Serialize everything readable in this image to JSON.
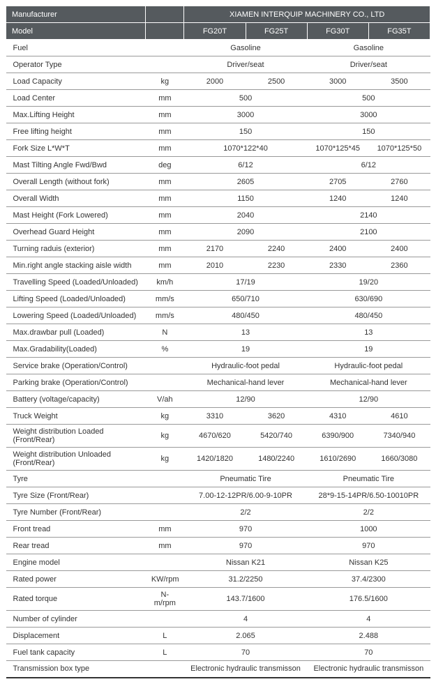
{
  "header": {
    "manufacturer_label": "Manufacturer",
    "company": "XIAMEN INTERQUIP MACHINERY CO., LTD",
    "model_label": "Model",
    "models": [
      "FG20T",
      "FG25T",
      "FG30T",
      "FG35T"
    ]
  },
  "rows": [
    {
      "label": "Fuel",
      "unit": "",
      "vals": [
        "Gasoline",
        "",
        "Gasoline",
        ""
      ],
      "span": [
        2,
        0,
        2,
        0
      ]
    },
    {
      "label": "Operator Type",
      "unit": "",
      "vals": [
        "Driver/seat",
        "",
        "Driver/seat",
        ""
      ],
      "span": [
        2,
        0,
        2,
        0
      ]
    },
    {
      "label": "Load Capacity",
      "unit": "kg",
      "vals": [
        "2000",
        "2500",
        "3000",
        "3500"
      ]
    },
    {
      "label": "Load Center",
      "unit": "mm",
      "vals": [
        "500",
        "",
        "500",
        ""
      ],
      "span": [
        2,
        0,
        2,
        0
      ]
    },
    {
      "label": "Max.Lifting Height",
      "unit": "mm",
      "vals": [
        "3000",
        "",
        "3000",
        ""
      ],
      "span": [
        2,
        0,
        2,
        0
      ]
    },
    {
      "label": "Free lifting height",
      "unit": "mm",
      "vals": [
        "150",
        "",
        "150",
        ""
      ],
      "span": [
        2,
        0,
        2,
        0
      ]
    },
    {
      "label": "Fork Size   L*W*T",
      "unit": "mm",
      "vals": [
        "1070*122*40",
        "",
        "1070*125*45",
        "1070*125*50"
      ],
      "span": [
        2,
        0,
        1,
        1
      ]
    },
    {
      "label": "Mast Tilting Angle   Fwd/Bwd",
      "unit": "deg",
      "vals": [
        "6/12",
        "",
        "6/12",
        ""
      ],
      "span": [
        2,
        0,
        2,
        0
      ]
    },
    {
      "label": "Overall Length (without fork)",
      "unit": "mm",
      "vals": [
        "2605",
        "",
        "2705",
        "2760"
      ],
      "span": [
        2,
        0,
        1,
        1
      ]
    },
    {
      "label": "Overall Width",
      "unit": "mm",
      "vals": [
        "1150",
        "",
        "1240",
        "1240"
      ],
      "span": [
        2,
        0,
        1,
        1
      ]
    },
    {
      "label": "Mast Height (Fork Lowered)",
      "unit": "mm",
      "vals": [
        "2040",
        "",
        "2140",
        ""
      ],
      "span": [
        2,
        0,
        2,
        0
      ]
    },
    {
      "label": "Overhead Guard Height",
      "unit": "mm",
      "vals": [
        "2090",
        "",
        "2100",
        ""
      ],
      "span": [
        2,
        0,
        2,
        0
      ]
    },
    {
      "label": "Turning raduis (exterior)",
      "unit": "mm",
      "vals": [
        "2170",
        "2240",
        "2400",
        "2400"
      ]
    },
    {
      "label": "Min.right angle stacking aisle width",
      "unit": "mm",
      "vals": [
        "2010",
        "2230",
        "2330",
        "2360"
      ]
    },
    {
      "label": "Travelling Speed (Loaded/Unloaded)",
      "unit": "km/h",
      "vals": [
        "17/19",
        "",
        "19/20",
        ""
      ],
      "span": [
        2,
        0,
        2,
        0
      ]
    },
    {
      "label": "Lifting Speed (Loaded/Unloaded)",
      "unit": "mm/s",
      "vals": [
        "650/710",
        "",
        "630/690",
        ""
      ],
      "span": [
        2,
        0,
        2,
        0
      ]
    },
    {
      "label": "Lowering Speed (Loaded/Unloaded)",
      "unit": "mm/s",
      "vals": [
        "480/450",
        "",
        "480/450",
        ""
      ],
      "span": [
        2,
        0,
        2,
        0
      ]
    },
    {
      "label": "Max.drawbar pull (Loaded)",
      "unit": "N",
      "vals": [
        "13",
        "",
        "13",
        ""
      ],
      "span": [
        2,
        0,
        2,
        0
      ]
    },
    {
      "label": "Max.Gradability(Loaded)",
      "unit": "%",
      "vals": [
        "19",
        "",
        "19",
        ""
      ],
      "span": [
        2,
        0,
        2,
        0
      ]
    },
    {
      "label": "Service brake (Operation/Control)",
      "unit": "",
      "vals": [
        "Hydraulic-foot pedal",
        "",
        "Hydraulic-foot pedal",
        ""
      ],
      "span": [
        2,
        0,
        2,
        0
      ]
    },
    {
      "label": "Parking brake (Operation/Control)",
      "unit": "",
      "vals": [
        "Mechanical-hand lever",
        "",
        "Mechanical-hand lever",
        ""
      ],
      "span": [
        2,
        0,
        2,
        0
      ]
    },
    {
      "label": "Battery (voltage/capacity)",
      "unit": "V/ah",
      "vals": [
        "12/90",
        "",
        "12/90",
        ""
      ],
      "span": [
        2,
        0,
        2,
        0
      ]
    },
    {
      "label": "Truck Weight",
      "unit": "kg",
      "vals": [
        "3310",
        "3620",
        "4310",
        "4610"
      ]
    },
    {
      "label": "Weight distribution Loaded (Front/Rear)",
      "unit": "kg",
      "vals": [
        "4670/620",
        "5420/740",
        "6390/900",
        "7340/940"
      ]
    },
    {
      "label": "Weight distribution Unloaded (Front/Rear)",
      "unit": "kg",
      "vals": [
        "1420/1820",
        "1480/2240",
        "1610/2690",
        "1660/3080"
      ]
    },
    {
      "label": "Tyre",
      "unit": "",
      "vals": [
        "Pneumatic Tire",
        "",
        "Pneumatic Tire",
        ""
      ],
      "span": [
        2,
        0,
        2,
        0
      ]
    },
    {
      "label": "Tyre Size  (Front/Rear)",
      "unit": "",
      "vals": [
        "7.00-12-12PR/6.00-9-10PR",
        "",
        "28*9-15-14PR/6.50-10010PR",
        ""
      ],
      "span": [
        2,
        0,
        2,
        0
      ]
    },
    {
      "label": "Tyre Number  (Front/Rear)",
      "unit": "",
      "vals": [
        "2/2",
        "",
        "2/2",
        ""
      ],
      "span": [
        2,
        0,
        2,
        0
      ]
    },
    {
      "label": "Front tread",
      "unit": "mm",
      "vals": [
        "970",
        "",
        "1000",
        ""
      ],
      "span": [
        2,
        0,
        2,
        0
      ]
    },
    {
      "label": "Rear tread",
      "unit": "mm",
      "vals": [
        "970",
        "",
        "970",
        ""
      ],
      "span": [
        2,
        0,
        2,
        0
      ]
    },
    {
      "label": "Engine model",
      "unit": "",
      "vals": [
        "Nissan K21",
        "",
        "Nissan K25",
        ""
      ],
      "span": [
        2,
        0,
        2,
        0
      ]
    },
    {
      "label": "Rated power",
      "unit": "KW/rpm",
      "vals": [
        "31.2/2250",
        "",
        "37.4/2300",
        ""
      ],
      "span": [
        2,
        0,
        2,
        0
      ]
    },
    {
      "label": "Rated torque",
      "unit": "N-m/rpm",
      "vals": [
        "143.7/1600",
        "",
        "176.5/1600",
        ""
      ],
      "span": [
        2,
        0,
        2,
        0
      ]
    },
    {
      "label": "Number of cylinder",
      "unit": "",
      "vals": [
        "4",
        "",
        "4",
        ""
      ],
      "span": [
        2,
        0,
        2,
        0
      ]
    },
    {
      "label": "Displacement",
      "unit": "L",
      "vals": [
        "2.065",
        "",
        "2.488",
        ""
      ],
      "span": [
        2,
        0,
        2,
        0
      ]
    },
    {
      "label": "Fuel tank capacity",
      "unit": "L",
      "vals": [
        "70",
        "",
        "70",
        ""
      ],
      "span": [
        2,
        0,
        2,
        0
      ]
    },
    {
      "label": "Transmission box type",
      "unit": "",
      "vals": [
        "Electronic hydraulic transmisson",
        "",
        "Electronic hydraulic transmisson",
        ""
      ],
      "span": [
        2,
        0,
        2,
        0
      ],
      "thick": true
    }
  ]
}
